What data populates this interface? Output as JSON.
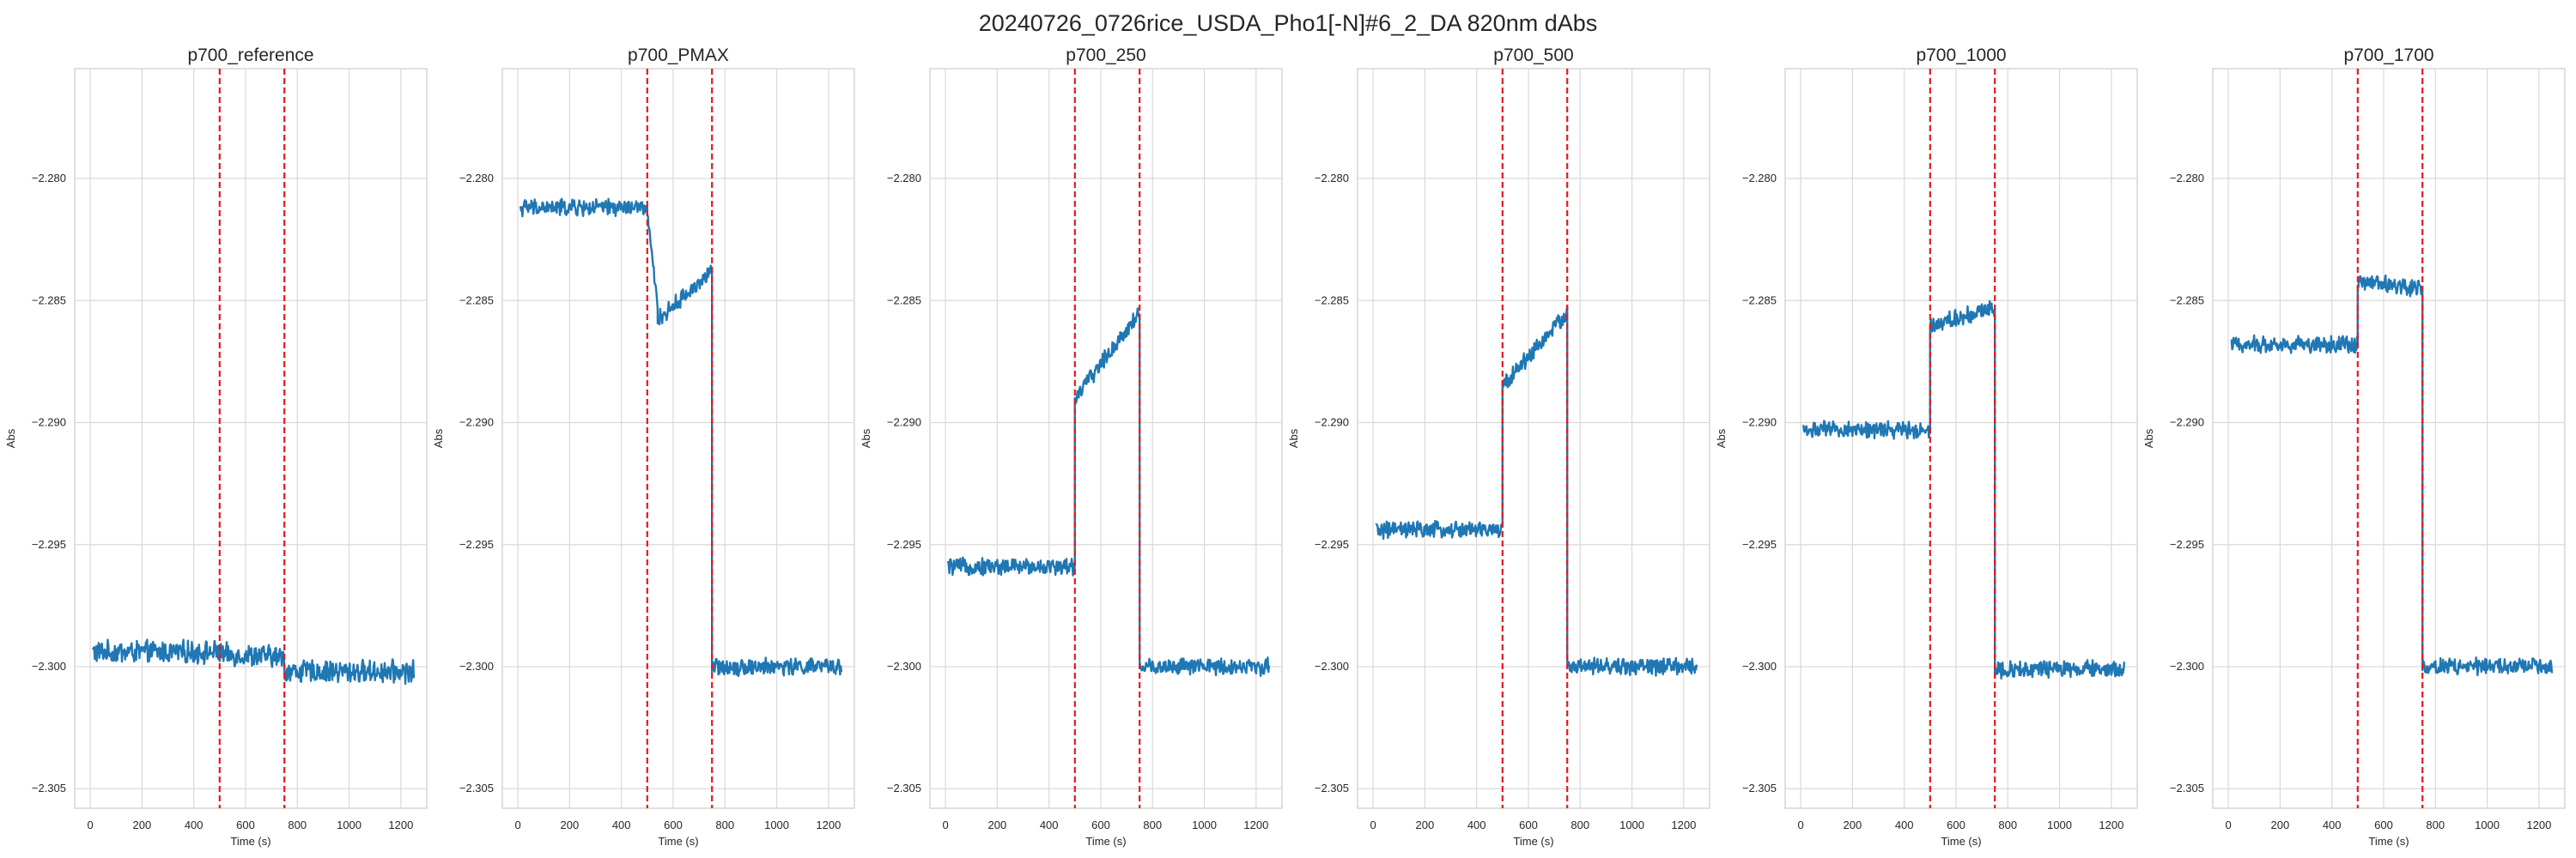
{
  "figure": {
    "title": "20240726_0726rice_USDA_Pho1[-N]#6_2_DA 820nm dAbs"
  },
  "colors": {
    "series": "#1f77b4",
    "marker_lines": "#e41a1c",
    "grid": "#d9d9d9",
    "frame": "#cccccc",
    "text": "#262626"
  },
  "chart_data": [
    {
      "type": "line",
      "title": "p700_reference",
      "xlabel": "Time (s)",
      "ylabel": "Abs",
      "xlim": [
        -60,
        1300
      ],
      "ylim": [
        -2.3058,
        -2.2755
      ],
      "xticks": [
        "0",
        "200",
        "400",
        "600",
        "800",
        "1000",
        "1200"
      ],
      "yticks": [
        "−2.280",
        "−2.285",
        "−2.290",
        "−2.295",
        "−2.300",
        "−2.305"
      ],
      "vlines": [
        500,
        750
      ],
      "grid": true,
      "segments": [
        {
          "x": [
            10,
            500
          ],
          "y_mean": -2.2994,
          "y_noise": 0.0004
        },
        {
          "x": [
            500,
            750
          ],
          "y_start": -2.2995,
          "y_end": -2.2996,
          "y_noise": 0.0004
        },
        {
          "x": [
            750,
            1250
          ],
          "y_mean": -2.3002,
          "y_noise": 0.0004
        }
      ]
    },
    {
      "type": "line",
      "title": "p700_PMAX",
      "xlabel": "Time (s)",
      "ylabel": "Abs",
      "xlim": [
        -60,
        1300
      ],
      "ylim": [
        -2.3058,
        -2.2755
      ],
      "xticks": [
        "0",
        "200",
        "400",
        "600",
        "800",
        "1000",
        "1200"
      ],
      "yticks": [
        "−2.280",
        "−2.285",
        "−2.290",
        "−2.295",
        "−2.300",
        "−2.305"
      ],
      "vlines": [
        500,
        750
      ],
      "grid": true,
      "segments": [
        {
          "x": [
            10,
            500
          ],
          "y_mean": -2.2812,
          "y_noise": 0.0003
        },
        {
          "x": [
            500,
            540
          ],
          "y_start": -2.2815,
          "y_end": -2.2852,
          "y_noise": 0.0002
        },
        {
          "x": [
            540,
            750
          ],
          "y_start": -2.2858,
          "y_end": -2.2838,
          "y_noise": 0.0003
        },
        {
          "x": [
            750,
            1250
          ],
          "y_mean": -2.3,
          "y_noise": 0.0003
        }
      ]
    },
    {
      "type": "line",
      "title": "p700_250",
      "xlabel": "Time (s)",
      "ylabel": "Abs",
      "xlim": [
        -60,
        1300
      ],
      "ylim": [
        -2.3058,
        -2.2755
      ],
      "xticks": [
        "0",
        "200",
        "400",
        "600",
        "800",
        "1000",
        "1200"
      ],
      "yticks": [
        "−2.280",
        "−2.285",
        "−2.290",
        "−2.295",
        "−2.300",
        "−2.305"
      ],
      "vlines": [
        500,
        750
      ],
      "grid": true,
      "segments": [
        {
          "x": [
            10,
            500
          ],
          "y_mean": -2.2959,
          "y_noise": 0.0003
        },
        {
          "x": [
            500,
            750
          ],
          "y_start": -2.289,
          "y_end": -2.2855,
          "y_noise": 0.0003
        },
        {
          "x": [
            750,
            1250
          ],
          "y_mean": -2.3,
          "y_noise": 0.0003
        }
      ]
    },
    {
      "type": "line",
      "title": "p700_500",
      "xlabel": "Time (s)",
      "ylabel": "Abs",
      "xlim": [
        -60,
        1300
      ],
      "ylim": [
        -2.3058,
        -2.2755
      ],
      "xticks": [
        "0",
        "200",
        "400",
        "600",
        "800",
        "1000",
        "1200"
      ],
      "yticks": [
        "−2.280",
        "−2.285",
        "−2.290",
        "−2.295",
        "−2.300",
        "−2.305"
      ],
      "vlines": [
        500,
        750
      ],
      "grid": true,
      "segments": [
        {
          "x": [
            10,
            500
          ],
          "y_mean": -2.2944,
          "y_noise": 0.0003
        },
        {
          "x": [
            500,
            750
          ],
          "y_start": -2.2885,
          "y_end": -2.2855,
          "y_noise": 0.0003
        },
        {
          "x": [
            750,
            1250
          ],
          "y_mean": -2.3,
          "y_noise": 0.0003
        }
      ]
    },
    {
      "type": "line",
      "title": "p700_1000",
      "xlabel": "Time (s)",
      "ylabel": "Abs",
      "xlim": [
        -60,
        1300
      ],
      "ylim": [
        -2.3058,
        -2.2755
      ],
      "xticks": [
        "0",
        "200",
        "400",
        "600",
        "800",
        "1000",
        "1200"
      ],
      "yticks": [
        "−2.280",
        "−2.285",
        "−2.290",
        "−2.295",
        "−2.300",
        "−2.305"
      ],
      "vlines": [
        500,
        750
      ],
      "grid": true,
      "segments": [
        {
          "x": [
            10,
            500
          ],
          "y_mean": -2.2903,
          "y_noise": 0.0003
        },
        {
          "x": [
            500,
            750
          ],
          "y_start": -2.286,
          "y_end": -2.2853,
          "y_noise": 0.0003
        },
        {
          "x": [
            750,
            1250
          ],
          "y_mean": -2.3001,
          "y_noise": 0.0003
        }
      ]
    },
    {
      "type": "line",
      "title": "p700_1700",
      "xlabel": "Time (s)",
      "ylabel": "Abs",
      "xlim": [
        -60,
        1300
      ],
      "ylim": [
        -2.3058,
        -2.2755
      ],
      "xticks": [
        "0",
        "200",
        "400",
        "600",
        "800",
        "1000",
        "1200"
      ],
      "yticks": [
        "−2.280",
        "−2.285",
        "−2.290",
        "−2.295",
        "−2.300",
        "−2.305"
      ],
      "vlines": [
        500,
        750
      ],
      "grid": true,
      "segments": [
        {
          "x": [
            10,
            500
          ],
          "y_mean": -2.2868,
          "y_noise": 0.0003
        },
        {
          "x": [
            500,
            750
          ],
          "y_start": -2.2842,
          "y_end": -2.2845,
          "y_noise": 0.0003
        },
        {
          "x": [
            750,
            1250
          ],
          "y_mean": -2.3,
          "y_noise": 0.0003
        }
      ]
    }
  ]
}
